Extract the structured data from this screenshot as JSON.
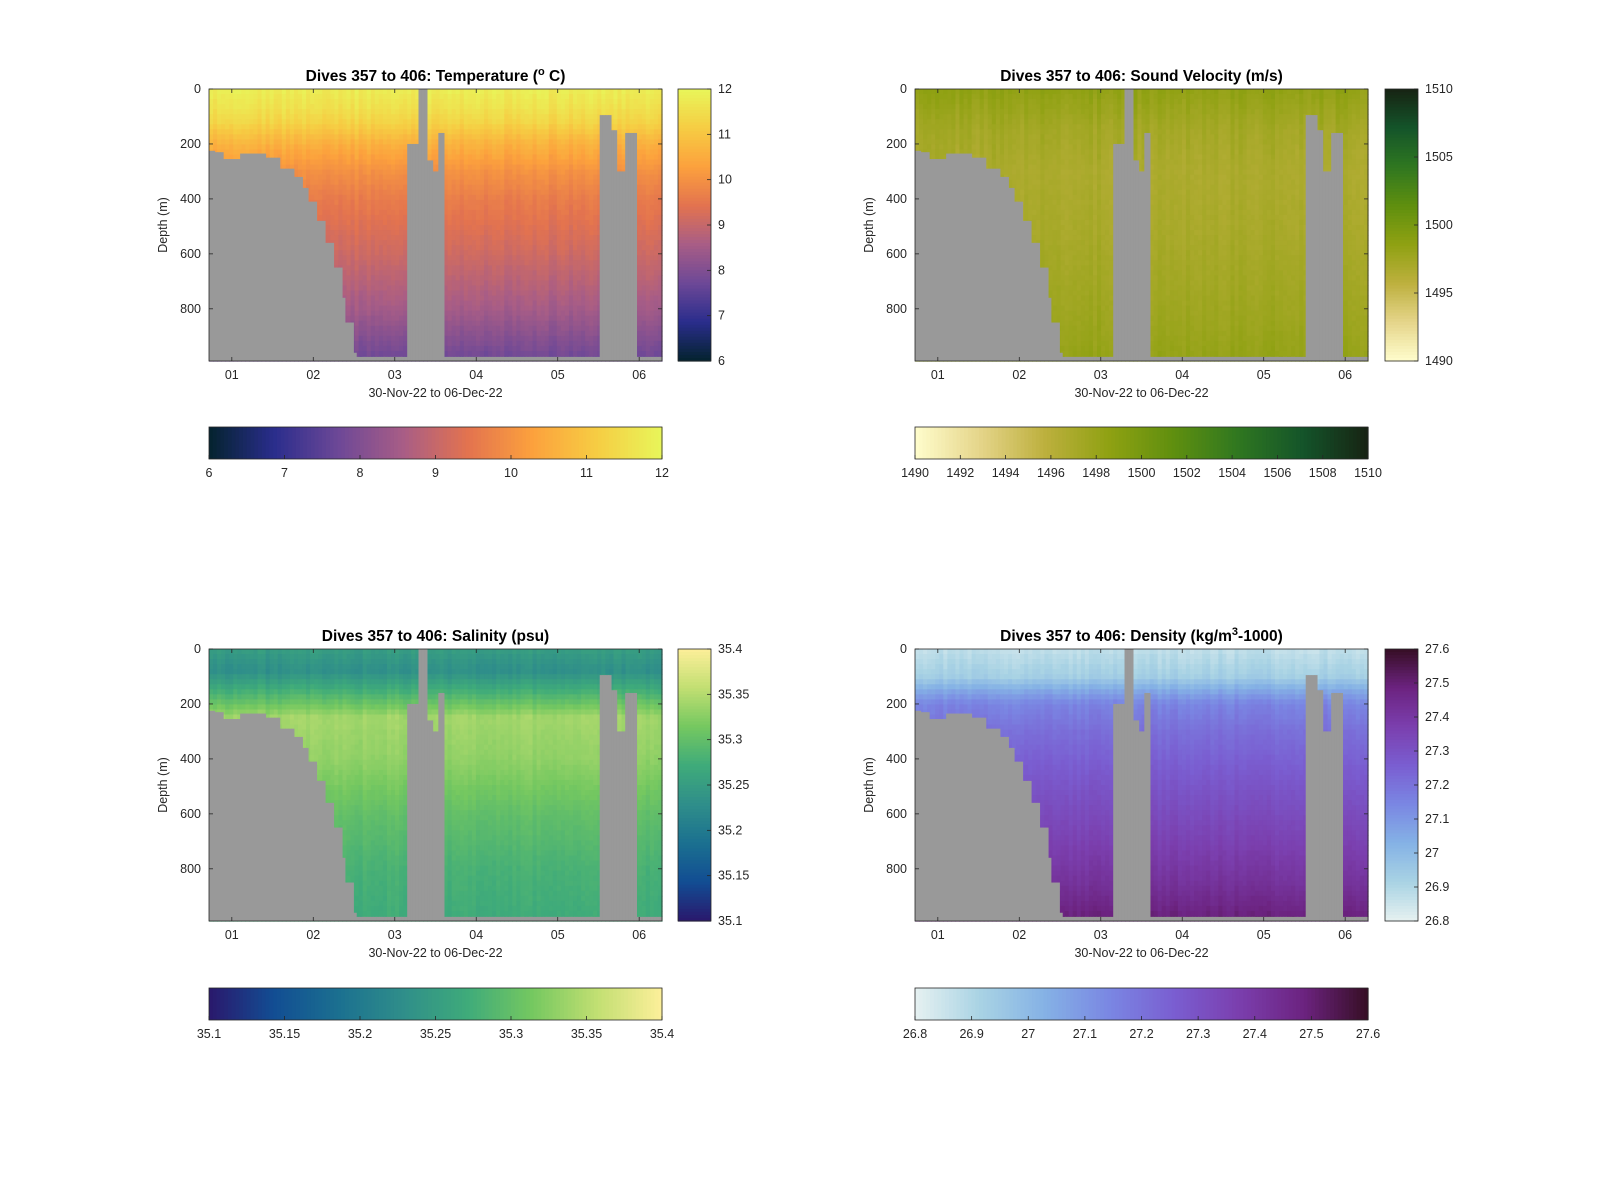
{
  "figure": {
    "background": "#ffffff",
    "land_color": "#999999"
  },
  "panels": [
    {
      "id": "temperature",
      "title": "Dives 357 to 406: Temperature (° C)",
      "title_parts": [
        "Dives 357 to 406: Temperature (",
        "o",
        " C)"
      ],
      "title_sup_index": 1,
      "ylabel": "Depth (m)",
      "xlabel": "30-Nov-22 to 06-Dec-22",
      "colormap": "thermal",
      "colormap_stops": [
        "#04232e",
        "#2a2d8c",
        "#6d4897",
        "#a85d86",
        "#e3734f",
        "#fca13d",
        "#f6cd43",
        "#e8f65a"
      ],
      "clim": [
        6,
        12
      ],
      "vertical_colorbar_ticks": [
        "6",
        "7",
        "8",
        "9",
        "10",
        "11",
        "12"
      ],
      "horizontal_colorbar_ticks": [
        "6",
        "7",
        "8",
        "9",
        "10",
        "11",
        "12"
      ]
    },
    {
      "id": "sound-velocity",
      "title": "Dives 357 to 406: Sound Velocity (m/s)",
      "title_parts": [
        "Dives 357 to 406: Sound Velocity (m/s)"
      ],
      "title_sup_index": -1,
      "ylabel": "Depth (m)",
      "xlabel": "30-Nov-22 to 06-Dec-22",
      "colormap": "speed",
      "colormap_stops": [
        "#fffdcd",
        "#e5d58a",
        "#bdb03e",
        "#8fa112",
        "#5f8f0f",
        "#2f7720",
        "#14542a",
        "#172313"
      ],
      "clim": [
        1490,
        1510
      ],
      "vertical_colorbar_ticks": [
        "1490",
        "1495",
        "1500",
        "1505",
        "1510"
      ],
      "horizontal_colorbar_ticks": [
        "1490",
        "1492",
        "1494",
        "1496",
        "1498",
        "1500",
        "1502",
        "1504",
        "1506",
        "1508",
        "1510"
      ]
    },
    {
      "id": "salinity",
      "title": "Dives 357 to 406: Salinity (psu)",
      "title_parts": [
        "Dives 357 to 406: Salinity (psu)"
      ],
      "title_sup_index": -1,
      "ylabel": "Depth (m)",
      "xlabel": "30-Nov-22 to 06-Dec-22",
      "colormap": "haline",
      "colormap_stops": [
        "#2a186c",
        "#124d93",
        "#1b7090",
        "#2f8e8a",
        "#3fab7a",
        "#75c860",
        "#c2df72",
        "#fdef9a"
      ],
      "clim": [
        35.1,
        35.4
      ],
      "vertical_colorbar_ticks": [
        "35.1",
        "35.15",
        "35.2",
        "35.25",
        "35.3",
        "35.35",
        "35.4"
      ],
      "horizontal_colorbar_ticks": [
        "35.1",
        "35.15",
        "35.2",
        "35.25",
        "35.3",
        "35.35",
        "35.4"
      ]
    },
    {
      "id": "density",
      "title": "Dives 357 to 406: Density (kg/m³-1000)",
      "title_parts": [
        "Dives 357 to 406: Density (kg/m",
        "3",
        "-1000)"
      ],
      "title_sup_index": 1,
      "ylabel": "Depth (m)",
      "xlabel": "30-Nov-22 to 06-Dec-22",
      "colormap": "dense",
      "colormap_stops": [
        "#e6f1f1",
        "#a9d3e4",
        "#85b2e5",
        "#7a87e3",
        "#7a5ed1",
        "#7b3fae",
        "#6c2380",
        "#360e24"
      ],
      "clim": [
        26.8,
        27.6
      ],
      "vertical_colorbar_ticks": [
        "26.8",
        "26.9",
        "27",
        "27.1",
        "27.2",
        "27.3",
        "27.4",
        "27.5",
        "27.6"
      ],
      "horizontal_colorbar_ticks": [
        "26.8",
        "26.9",
        "27",
        "27.1",
        "27.2",
        "27.3",
        "27.4",
        "27.5",
        "27.6"
      ]
    }
  ],
  "chart_data": [
    {
      "type": "heatmap",
      "title": "Dives 357 to 406: Temperature (° C)",
      "xlabel": "30-Nov-22 to 06-Dec-22",
      "ylabel": "Depth (m)",
      "x_ticks": [
        "01",
        "02",
        "03",
        "04",
        "05",
        "06"
      ],
      "x_tick_days": [
        1,
        2,
        3,
        4,
        5,
        6
      ],
      "xlim_days": [
        0.72,
        6.28
      ],
      "y_ticks": [
        "0",
        "200",
        "400",
        "600",
        "800"
      ],
      "y_tick_values": [
        0,
        200,
        400,
        600,
        800
      ],
      "ylim": [
        990,
        0
      ],
      "y_reversed": true,
      "clim": [
        6,
        12
      ],
      "colorbar": "vertical right and horizontal below",
      "profile": [
        [
          0,
          11.8
        ],
        [
          60,
          11.6
        ],
        [
          120,
          11.3
        ],
        [
          200,
          10.6
        ],
        [
          300,
          10.0
        ],
        [
          400,
          9.6
        ],
        [
          600,
          9.1
        ],
        [
          800,
          8.5
        ],
        [
          990,
          7.7
        ]
      ],
      "grid": false
    },
    {
      "type": "heatmap",
      "title": "Dives 357 to 406: Sound Velocity (m/s)",
      "xlabel": "30-Nov-22 to 06-Dec-22",
      "ylabel": "Depth (m)",
      "x_ticks": [
        "01",
        "02",
        "03",
        "04",
        "05",
        "06"
      ],
      "x_tick_days": [
        1,
        2,
        3,
        4,
        5,
        6
      ],
      "xlim_days": [
        0.72,
        6.28
      ],
      "y_ticks": [
        "0",
        "200",
        "400",
        "600",
        "800"
      ],
      "y_tick_values": [
        0,
        200,
        400,
        600,
        800
      ],
      "ylim": [
        990,
        0
      ],
      "y_reversed": true,
      "clim": [
        1490,
        1510
      ],
      "colorbar": "vertical right and horizontal below",
      "profile": [
        [
          0,
          1498.5
        ],
        [
          150,
          1497.3
        ],
        [
          300,
          1496.8
        ],
        [
          500,
          1497.0
        ],
        [
          700,
          1497.4
        ],
        [
          850,
          1497.8
        ],
        [
          990,
          1498.3
        ]
      ],
      "grid": false
    },
    {
      "type": "heatmap",
      "title": "Dives 357 to 406: Salinity (psu)",
      "xlabel": "30-Nov-22 to 06-Dec-22",
      "ylabel": "Depth (m)",
      "x_ticks": [
        "01",
        "02",
        "03",
        "04",
        "05",
        "06"
      ],
      "x_tick_days": [
        1,
        2,
        3,
        4,
        5,
        6
      ],
      "xlim_days": [
        0.72,
        6.28
      ],
      "y_ticks": [
        "0",
        "200",
        "400",
        "600",
        "800"
      ],
      "y_tick_values": [
        0,
        200,
        400,
        600,
        800
      ],
      "ylim": [
        990,
        0
      ],
      "y_reversed": true,
      "clim": [
        35.1,
        35.4
      ],
      "colorbar": "vertical right and horizontal below",
      "profile": [
        [
          0,
          35.25
        ],
        [
          80,
          35.23
        ],
        [
          160,
          35.28
        ],
        [
          250,
          35.34
        ],
        [
          400,
          35.33
        ],
        [
          600,
          35.3
        ],
        [
          800,
          35.28
        ],
        [
          990,
          35.27
        ]
      ],
      "grid": false
    },
    {
      "type": "heatmap",
      "title": "Dives 357 to 406: Density (kg/m³-1000)",
      "xlabel": "30-Nov-22 to 06-Dec-22",
      "ylabel": "Depth (m)",
      "x_ticks": [
        "01",
        "02",
        "03",
        "04",
        "05",
        "06"
      ],
      "x_tick_days": [
        1,
        2,
        3,
        4,
        5,
        6
      ],
      "xlim_days": [
        0.72,
        6.28
      ],
      "y_ticks": [
        "0",
        "200",
        "400",
        "600",
        "800"
      ],
      "y_tick_values": [
        0,
        200,
        400,
        600,
        800
      ],
      "ylim": [
        990,
        0
      ],
      "y_reversed": true,
      "clim": [
        26.8,
        27.6
      ],
      "colorbar": "vertical right and horizontal below",
      "profile": [
        [
          0,
          26.87
        ],
        [
          100,
          26.93
        ],
        [
          150,
          27.05
        ],
        [
          200,
          27.15
        ],
        [
          300,
          27.21
        ],
        [
          500,
          27.29
        ],
        [
          700,
          27.36
        ],
        [
          850,
          27.42
        ],
        [
          990,
          27.5
        ]
      ],
      "grid": false
    }
  ],
  "bathymetry_mask": {
    "unit": "m",
    "land_below_depth": [
      {
        "day_from": 0.72,
        "day_to": 0.8,
        "depth_m": 225
      },
      {
        "day_from": 0.8,
        "day_to": 0.9,
        "depth_m": 230
      },
      {
        "day_from": 0.9,
        "day_to": 1.1,
        "depth_m": 255
      },
      {
        "day_from": 1.1,
        "day_to": 1.4,
        "depth_m": 235
      },
      {
        "day_from": 1.4,
        "day_to": 1.6,
        "depth_m": 250
      },
      {
        "day_from": 1.6,
        "day_to": 1.75,
        "depth_m": 290
      },
      {
        "day_from": 1.75,
        "day_to": 1.85,
        "depth_m": 320
      },
      {
        "day_from": 1.85,
        "day_to": 1.95,
        "depth_m": 360
      },
      {
        "day_from": 1.95,
        "day_to": 2.05,
        "depth_m": 410
      },
      {
        "day_from": 2.05,
        "day_to": 2.15,
        "depth_m": 480
      },
      {
        "day_from": 2.15,
        "day_to": 2.25,
        "depth_m": 560
      },
      {
        "day_from": 2.25,
        "day_to": 2.35,
        "depth_m": 650
      },
      {
        "day_from": 2.35,
        "day_to": 2.4,
        "depth_m": 760
      },
      {
        "day_from": 2.4,
        "day_to": 2.5,
        "depth_m": 850
      },
      {
        "day_from": 2.5,
        "day_to": 2.52,
        "depth_m": 960
      }
    ],
    "land_full_columns": [
      {
        "day_from": 3.15,
        "day_to": 3.28,
        "top_m": 200
      },
      {
        "day_from": 3.28,
        "day_to": 3.39,
        "top_m": 0
      },
      {
        "day_from": 3.39,
        "day_to": 3.46,
        "top_m": 260
      },
      {
        "day_from": 3.46,
        "day_to": 3.52,
        "top_m": 300
      },
      {
        "day_from": 3.52,
        "day_to": 3.62,
        "top_m": 160
      },
      {
        "day_from": 5.52,
        "day_to": 5.65,
        "top_m": 95
      },
      {
        "day_from": 5.65,
        "day_to": 5.73,
        "top_m": 150
      },
      {
        "day_from": 5.73,
        "day_to": 5.83,
        "top_m": 300
      },
      {
        "day_from": 5.83,
        "day_to": 5.95,
        "top_m": 160
      }
    ]
  }
}
